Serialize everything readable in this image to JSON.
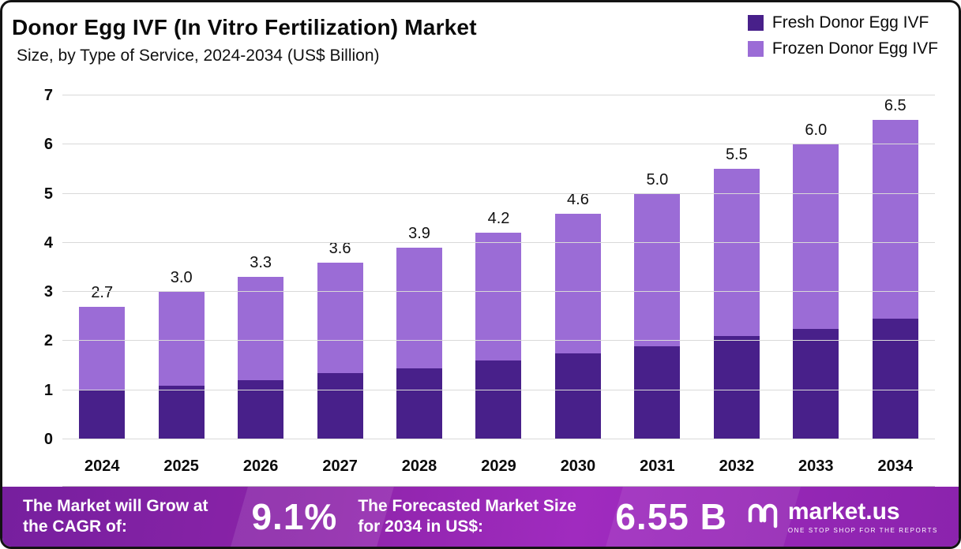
{
  "header": {
    "title": "Donor Egg IVF (In Vitro Fertilization) Market",
    "subtitle": "Size, by Type of Service, 2024-2034 (US$ Billion)"
  },
  "legend": [
    {
      "label": "Fresh Donor Egg IVF",
      "color": "#48208a"
    },
    {
      "label": "Frozen Donor Egg IVF",
      "color": "#9b6cd6"
    }
  ],
  "chart_data": {
    "type": "bar",
    "stacked": true,
    "title": "Donor Egg IVF (In Vitro Fertilization) Market Size, by Type of Service, 2024-2034 (US$ Billion)",
    "categories": [
      "2024",
      "2025",
      "2026",
      "2027",
      "2028",
      "2029",
      "2030",
      "2031",
      "2032",
      "2033",
      "2034"
    ],
    "series": [
      {
        "name": "Fresh Donor Egg IVF",
        "color": "#48208a",
        "values": [
          1.0,
          1.1,
          1.2,
          1.35,
          1.45,
          1.6,
          1.75,
          1.9,
          2.1,
          2.25,
          2.45
        ]
      },
      {
        "name": "Frozen Donor Egg IVF",
        "color": "#9b6cd6",
        "values": [
          1.7,
          1.9,
          2.1,
          2.25,
          2.45,
          2.6,
          2.85,
          3.1,
          3.4,
          3.75,
          4.05
        ]
      }
    ],
    "totals": [
      2.7,
      3.0,
      3.3,
      3.6,
      3.9,
      4.2,
      4.6,
      5.0,
      5.5,
      6.0,
      6.5
    ],
    "total_labels": [
      "2.7",
      "3.0",
      "3.3",
      "3.6",
      "3.9",
      "4.2",
      "4.6",
      "5.0",
      "5.5",
      "6.0",
      "6.5"
    ],
    "xlabel": "",
    "ylabel": "",
    "ylim": [
      0,
      7
    ],
    "y_ticks": [
      "0",
      "1",
      "2",
      "3",
      "4",
      "5",
      "6",
      "7"
    ],
    "grid": true,
    "legend_position": "top-right"
  },
  "footer": {
    "cagr_label": "The Market will Grow at the CAGR of:",
    "cagr_value": "9.1%",
    "forecast_label": "The Forecasted Market Size for 2034 in US$:",
    "forecast_value": "6.55 B",
    "brand": "market.us",
    "brand_tagline": "ONE STOP SHOP FOR THE REPORTS"
  }
}
